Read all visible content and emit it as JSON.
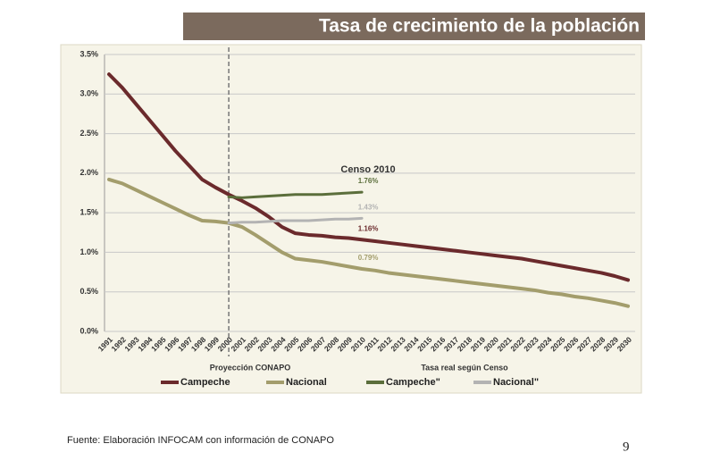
{
  "chart_data": {
    "type": "line",
    "title": "Tasa de  crecimiento de la población",
    "annotation": "Censo 2010",
    "x_group_labels": [
      "Proyección CONAPO",
      "Tasa real según Censo"
    ],
    "source": "Fuente: Elaboración INFOCAM con información de CONAPO",
    "page_number": "9",
    "categories": [
      "1991",
      "1992",
      "1993",
      "1994",
      "1995",
      "1996",
      "1997",
      "1998",
      "1999",
      "2000",
      "2001",
      "2002",
      "2003",
      "2004",
      "2005",
      "2006",
      "2007",
      "2008",
      "2009",
      "2010",
      "2011",
      "2012",
      "2013",
      "2014",
      "2015",
      "2016",
      "2017",
      "2018",
      "2019",
      "2020",
      "2021",
      "2022",
      "2023",
      "2024",
      "2025",
      "2026",
      "2027",
      "2028",
      "2029",
      "2030"
    ],
    "ylim": [
      0,
      3.5
    ],
    "yticks": [
      {
        "value": 0,
        "label": "0.0%"
      },
      {
        "value": 0.5,
        "label": "0.5%"
      },
      {
        "value": 1,
        "label": "1.0%"
      },
      {
        "value": 1.5,
        "label": "1.5%"
      },
      {
        "value": 2,
        "label": "2.0%"
      },
      {
        "value": 2.5,
        "label": "2.5%"
      },
      {
        "value": 3,
        "label": "3.0%"
      },
      {
        "value": 3.5,
        "label": "3.5%"
      }
    ],
    "grid": true,
    "legend": "bottom",
    "series": [
      {
        "name": "Campeche",
        "color": "#6b2a2c",
        "width": 4,
        "values": [
          3.25,
          3.08,
          2.88,
          2.68,
          2.48,
          2.28,
          2.1,
          1.92,
          1.82,
          1.73,
          1.65,
          1.56,
          1.45,
          1.32,
          1.24,
          1.22,
          1.21,
          1.19,
          1.18,
          1.16,
          1.14,
          1.12,
          1.1,
          1.08,
          1.06,
          1.04,
          1.02,
          1.0,
          0.98,
          0.96,
          0.94,
          0.92,
          0.89,
          0.86,
          0.83,
          0.8,
          0.77,
          0.74,
          0.7,
          0.65
        ],
        "value_labels": [
          null,
          null,
          null,
          null,
          null,
          null,
          null,
          null,
          null,
          null,
          null,
          null,
          null,
          null,
          null,
          null,
          null,
          null,
          null,
          "1.16%",
          null,
          null,
          null,
          null,
          null,
          null,
          null,
          null,
          null,
          null,
          null,
          null,
          null,
          null,
          null,
          null,
          null,
          null,
          null,
          null
        ]
      },
      {
        "name": "Nacional",
        "color": "#a39d6c",
        "width": 4,
        "values": [
          1.92,
          1.87,
          1.79,
          1.71,
          1.63,
          1.55,
          1.47,
          1.4,
          1.39,
          1.37,
          1.32,
          1.22,
          1.11,
          1.0,
          0.92,
          0.9,
          0.88,
          0.85,
          0.82,
          0.79,
          0.77,
          0.74,
          0.72,
          0.7,
          0.68,
          0.66,
          0.64,
          0.62,
          0.6,
          0.58,
          0.56,
          0.54,
          0.52,
          0.49,
          0.47,
          0.44,
          0.42,
          0.39,
          0.36,
          0.32
        ],
        "value_labels": [
          null,
          null,
          null,
          null,
          null,
          null,
          null,
          null,
          null,
          null,
          null,
          null,
          null,
          null,
          null,
          null,
          null,
          null,
          null,
          "0.79%",
          null,
          null,
          null,
          null,
          null,
          null,
          null,
          null,
          null,
          null,
          null,
          null,
          null,
          null,
          null,
          null,
          null,
          null,
          null,
          null
        ]
      },
      {
        "name": "Campeche\"",
        "color": "#5b6e3b",
        "width": 3,
        "values": [
          null,
          null,
          null,
          null,
          null,
          null,
          null,
          null,
          null,
          1.7,
          1.69,
          1.7,
          1.71,
          1.72,
          1.73,
          1.73,
          1.73,
          1.74,
          1.75,
          1.76,
          null,
          null,
          null,
          null,
          null,
          null,
          null,
          null,
          null,
          null,
          null,
          null,
          null,
          null,
          null,
          null,
          null,
          null,
          null,
          null
        ],
        "value_labels": [
          null,
          null,
          null,
          null,
          null,
          null,
          null,
          null,
          null,
          null,
          null,
          null,
          null,
          null,
          null,
          null,
          null,
          null,
          null,
          "1.76%",
          null,
          null,
          null,
          null,
          null,
          null,
          null,
          null,
          null,
          null,
          null,
          null,
          null,
          null,
          null,
          null,
          null,
          null,
          null,
          null
        ]
      },
      {
        "name": "Nacional\"",
        "color": "#b3b3b3",
        "width": 3,
        "values": [
          null,
          null,
          null,
          null,
          null,
          null,
          null,
          null,
          null,
          1.37,
          1.38,
          1.38,
          1.39,
          1.4,
          1.4,
          1.4,
          1.41,
          1.42,
          1.42,
          1.43,
          null,
          null,
          null,
          null,
          null,
          null,
          null,
          null,
          null,
          null,
          null,
          null,
          null,
          null,
          null,
          null,
          null,
          null,
          null,
          null
        ],
        "value_labels": [
          null,
          null,
          null,
          null,
          null,
          null,
          null,
          null,
          null,
          null,
          null,
          null,
          null,
          null,
          null,
          null,
          null,
          null,
          null,
          "1.43%",
          null,
          null,
          null,
          null,
          null,
          null,
          null,
          null,
          null,
          null,
          null,
          null,
          null,
          null,
          null,
          null,
          null,
          null,
          null,
          null
        ]
      }
    ]
  }
}
